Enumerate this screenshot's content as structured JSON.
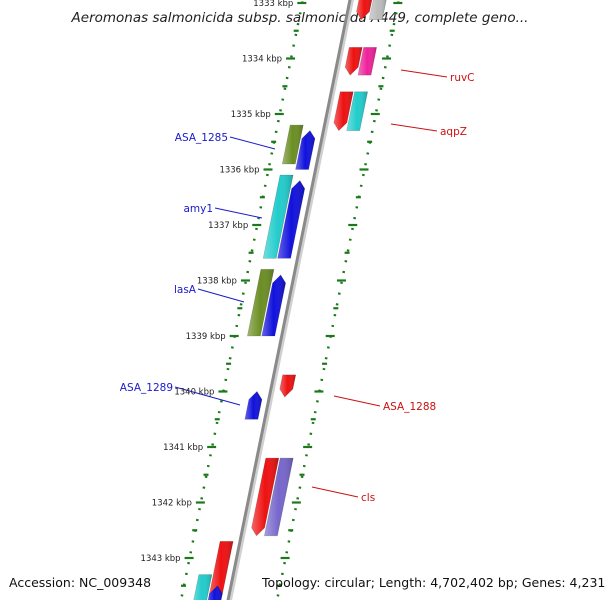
{
  "title": "Aeromonas salmonicida subsp. salmonicida A449, complete geno...",
  "footer": {
    "accession": "Accession: NC_009348",
    "summary": "Topology: circular; Length: 4,702,402 bp; Genes: 4,231"
  },
  "colors": {
    "backbone": "#8a8a8a",
    "tick": "#1a7a1a",
    "left_label": "#1a1acc",
    "right_label": "#cc1111",
    "red": "#ee1111",
    "blue": "#1111dd",
    "cyan": "#22cccc",
    "olive": "#6b8e23",
    "magenta": "#ee2299",
    "purple": "#7766cc",
    "grey": "#bbbbbb"
  },
  "tick_labels": [
    {
      "kbp": 1333,
      "text": "1333 kbp"
    },
    {
      "kbp": 1334,
      "text": "1334 kbp"
    },
    {
      "kbp": 1335,
      "text": "1335 kbp"
    },
    {
      "kbp": 1336,
      "text": "1336 kbp"
    },
    {
      "kbp": 1337,
      "text": "1337 kbp"
    },
    {
      "kbp": 1338,
      "text": "1338 kbp"
    },
    {
      "kbp": 1339,
      "text": "1339 kbp"
    },
    {
      "kbp": 1340,
      "text": "1340 kbp"
    },
    {
      "kbp": 1341,
      "text": "1341 kbp"
    },
    {
      "kbp": 1342,
      "text": "1342 kbp"
    },
    {
      "kbp": 1343,
      "text": "1343 kbp"
    }
  ],
  "features": [
    {
      "name": "ASA_1285",
      "label": "ASA_1285",
      "side": "left",
      "kbp_start": 1335.2,
      "kbp_end": 1335.9,
      "color": "olive",
      "offset": -0.6,
      "shape": "bar"
    },
    {
      "name": "ASA_1285-cds",
      "label": "",
      "side": "left",
      "kbp_start": 1335.3,
      "kbp_end": 1336.0,
      "color": "blue",
      "offset": -0.3,
      "shape": "arrow-up"
    },
    {
      "name": "amy1",
      "label": "amy1",
      "side": "left",
      "kbp_start": 1336.1,
      "kbp_end": 1337.6,
      "color": "cyan",
      "offset": -0.6,
      "shape": "bar"
    },
    {
      "name": "amy1-cds",
      "label": "",
      "side": "left",
      "kbp_start": 1336.2,
      "kbp_end": 1337.6,
      "color": "blue",
      "offset": -0.3,
      "shape": "arrow-up"
    },
    {
      "name": "lasA",
      "label": "lasA",
      "side": "left",
      "kbp_start": 1337.8,
      "kbp_end": 1339.0,
      "color": "olive",
      "offset": -0.6,
      "shape": "bar"
    },
    {
      "name": "lasA-cds",
      "label": "",
      "side": "left",
      "kbp_start": 1337.9,
      "kbp_end": 1339.0,
      "color": "blue",
      "offset": -0.3,
      "shape": "arrow-up"
    },
    {
      "name": "ASA_1289",
      "label": "ASA_1289",
      "side": "left",
      "kbp_start": 1340.0,
      "kbp_end": 1340.5,
      "color": "blue",
      "offset": -0.3,
      "shape": "arrow-up"
    },
    {
      "name": "ASA_1288",
      "label": "ASA_1288",
      "side": "right",
      "kbp_start": 1339.7,
      "kbp_end": 1340.1,
      "color": "red",
      "offset": 0.3,
      "shape": "arrow-down"
    },
    {
      "name": "cls",
      "label": "cls",
      "side": "right",
      "kbp_start": 1341.2,
      "kbp_end": 1342.6,
      "color": "red",
      "offset": 0.3,
      "shape": "arrow-down"
    },
    {
      "name": "cls-gene",
      "label": "",
      "side": "right",
      "kbp_start": 1341.2,
      "kbp_end": 1342.6,
      "color": "purple",
      "offset": 0.6,
      "shape": "bar"
    },
    {
      "name": "ruvC",
      "label": "ruvC",
      "side": "right",
      "kbp_start": 1333.8,
      "kbp_end": 1334.3,
      "color": "red",
      "offset": 0.3,
      "shape": "arrow-down"
    },
    {
      "name": "ruvC-gene",
      "label": "",
      "side": "right",
      "kbp_start": 1333.8,
      "kbp_end": 1334.3,
      "color": "magenta",
      "offset": 0.6,
      "shape": "bar"
    },
    {
      "name": "aqpZ",
      "label": "aqpZ",
      "side": "right",
      "kbp_start": 1334.6,
      "kbp_end": 1335.3,
      "color": "red",
      "offset": 0.3,
      "shape": "arrow-down"
    },
    {
      "name": "aqpZ-gene",
      "label": "",
      "side": "right",
      "kbp_start": 1334.6,
      "kbp_end": 1335.3,
      "color": "cyan",
      "offset": 0.6,
      "shape": "bar"
    },
    {
      "name": "top-red",
      "label": "",
      "side": "right",
      "kbp_start": 1332.9,
      "kbp_end": 1333.3,
      "color": "red",
      "offset": 0.3,
      "shape": "arrow-down"
    },
    {
      "name": "top-grey",
      "label": "",
      "side": "right",
      "kbp_start": 1332.9,
      "kbp_end": 1333.3,
      "color": "grey",
      "offset": 0.6,
      "shape": "bar"
    },
    {
      "name": "bottom-red",
      "label": "",
      "side": "left",
      "kbp_start": 1342.7,
      "kbp_end": 1343.8,
      "color": "red",
      "offset": -0.3,
      "shape": "arrow-down"
    },
    {
      "name": "bottom-cyan",
      "label": "",
      "side": "left",
      "kbp_start": 1343.3,
      "kbp_end": 1343.9,
      "color": "cyan",
      "offset": -0.6,
      "shape": "bar"
    },
    {
      "name": "bottom-blue",
      "label": "",
      "side": "left",
      "kbp_start": 1343.5,
      "kbp_end": 1343.9,
      "color": "blue",
      "offset": -0.3,
      "shape": "arrow-up"
    }
  ]
}
